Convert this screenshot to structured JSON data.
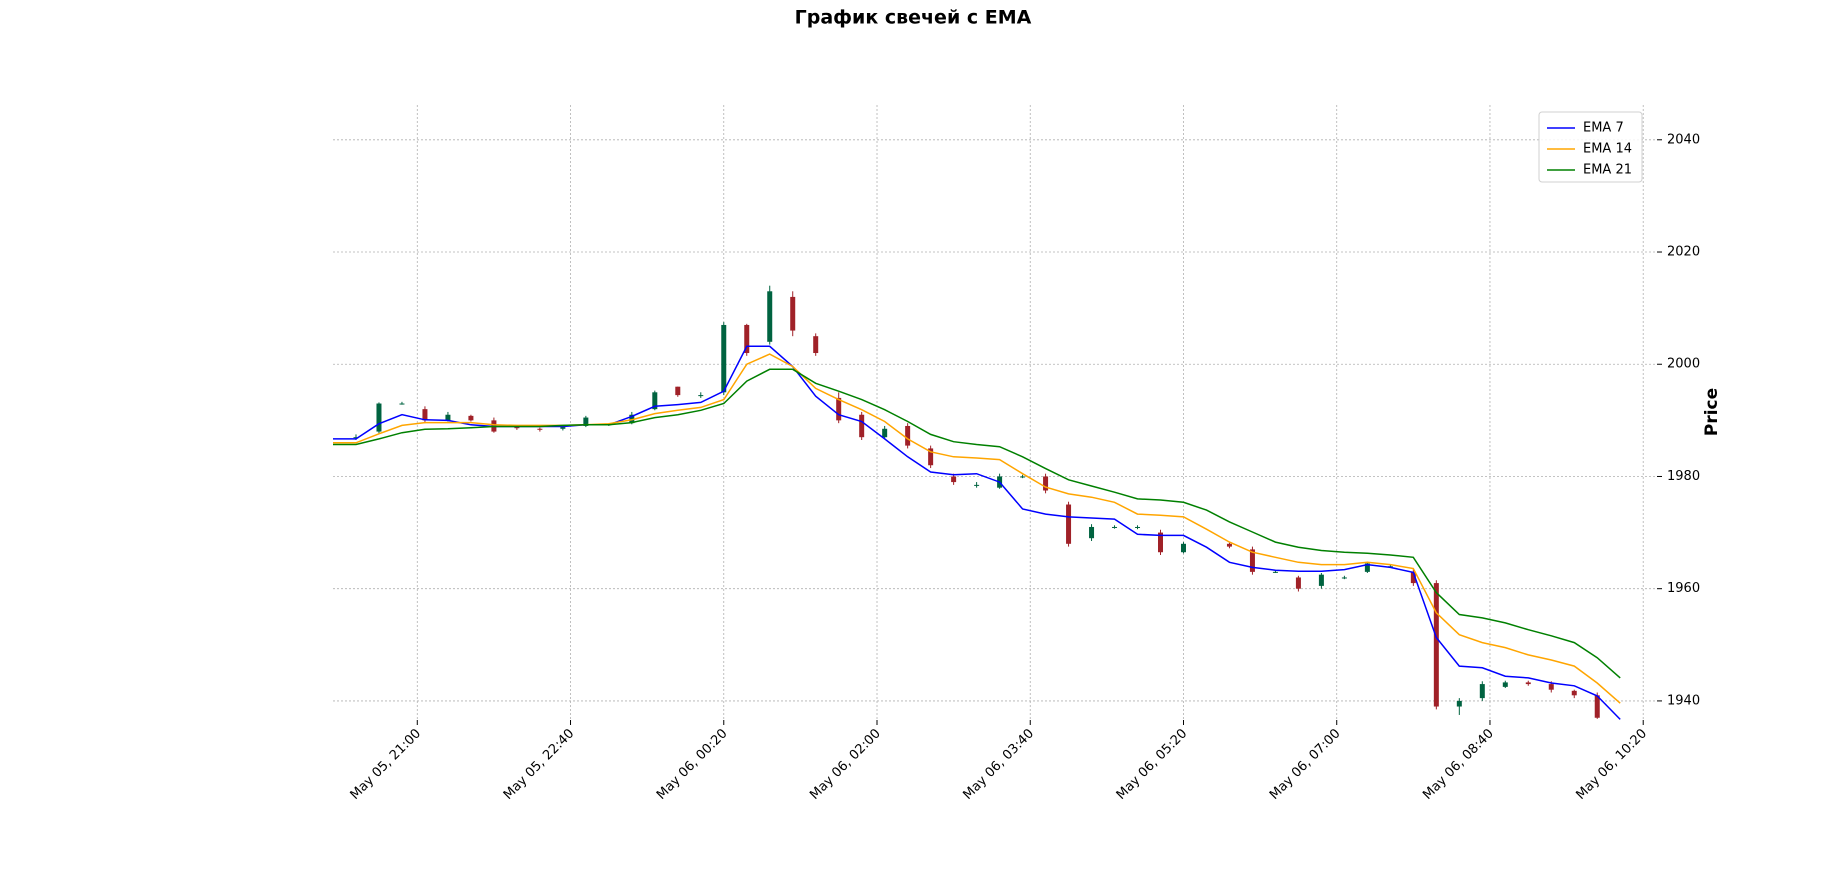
{
  "chart_data": {
    "type": "candlestick",
    "title": "График свечей с EMA",
    "y_label": "Price",
    "x": [
      "May 05, 20:05",
      "May 05, 20:20",
      "May 05, 20:35",
      "May 05, 20:50",
      "May 05, 21:05",
      "May 05, 21:20",
      "May 05, 21:35",
      "May 05, 21:50",
      "May 05, 22:05",
      "May 05, 22:20",
      "May 05, 22:35",
      "May 05, 22:50",
      "May 05, 23:05",
      "May 05, 23:20",
      "May 05, 23:35",
      "May 05, 23:50",
      "May 06, 00:05",
      "May 06, 00:20",
      "May 06, 00:35",
      "May 06, 00:50",
      "May 06, 01:05",
      "May 06, 01:20",
      "May 06, 01:35",
      "May 06, 01:50",
      "May 06, 02:05",
      "May 06, 02:20",
      "May 06, 02:35",
      "May 06, 02:50",
      "May 06, 03:05",
      "May 06, 03:20",
      "May 06, 03:35",
      "May 06, 03:50",
      "May 06, 04:05",
      "May 06, 04:20",
      "May 06, 04:35",
      "May 06, 04:50",
      "May 06, 05:05",
      "May 06, 05:20",
      "May 06, 05:35",
      "May 06, 05:50",
      "May 06, 06:05",
      "May 06, 06:20",
      "May 06, 06:35",
      "May 06, 06:50",
      "May 06, 07:05",
      "May 06, 07:20",
      "May 06, 07:35",
      "May 06, 07:50",
      "May 06, 08:05",
      "May 06, 08:20",
      "May 06, 08:35",
      "May 06, 08:50",
      "May 06, 09:05",
      "May 06, 09:20",
      "May 06, 09:35",
      "May 06, 09:50",
      "May 06, 10:05"
    ],
    "open": [
      null,
      1987,
      1988,
      1993,
      1992,
      1990,
      1990.8,
      1990,
      1988.8,
      1988.5,
      1988.5,
      1989,
      1989.3,
      1989.5,
      1992,
      1996,
      1994.5,
      1995,
      2007,
      2004,
      2012,
      2005,
      1994,
      1991,
      1987,
      1989,
      1985,
      1980,
      1978.5,
      1978,
      1980,
      1980,
      1975,
      1969,
      1971,
      1971,
      1970,
      1966.5,
      null,
      1968,
      1967,
      1963,
      1962,
      1960.5,
      1962,
      1963,
      1964,
      1963,
      1961,
      1939,
      1940.5,
      1942.5,
      1943.3,
      1943,
      1941.8,
      1941,
      null
    ],
    "high": [
      null,
      1987.5,
      1993.2,
      1993.3,
      1992.5,
      1991.5,
      1991,
      1990.5,
      1989,
      1988.7,
      1989,
      1990.8,
      1989.5,
      1991.5,
      1995.3,
      1996,
      1995,
      2007.5,
      2007.2,
      2014,
      2013,
      2005.5,
      1995,
      1991.5,
      1989,
      1989.5,
      1985.5,
      1980.5,
      1979,
      1980.5,
      1980.3,
      1980.5,
      1975.5,
      1971.5,
      1971.3,
      1971.3,
      1970.5,
      1968.3,
      null,
      1968.2,
      1967.5,
      1963.3,
      1962.3,
      1962.8,
      1962.3,
      1964.8,
      1964.3,
      1963.5,
      1961.5,
      1940.5,
      1943.5,
      1943.6,
      1943.6,
      1943.5,
      1942,
      1941.5,
      null
    ],
    "low": [
      null,
      1986.5,
      1987.5,
      1992.8,
      1989.5,
      1989.8,
      1989.8,
      1987.8,
      1988.3,
      1988,
      1988.2,
      1988.8,
      1989,
      1989.3,
      1991.8,
      1994.2,
      1994,
      1994.5,
      2001.5,
      2003.5,
      2005,
      2001.5,
      1989.5,
      1986.5,
      1986.8,
      1985,
      1981.5,
      1978.5,
      1978,
      1977.8,
      1979.7,
      1977,
      1967.5,
      1968.5,
      1970.7,
      1970.6,
      1966,
      1966.3,
      null,
      1967.2,
      1962.5,
      1962.8,
      1959.5,
      1960,
      1961.7,
      1962.8,
      1963.8,
      1960.5,
      1938.5,
      1937.5,
      1940,
      1942.3,
      1942.7,
      1941.5,
      1940.5,
      1936.8,
      null
    ],
    "close": [
      null,
      1987,
      1993,
      1993,
      1990,
      1991,
      1990,
      1988,
      1988.6,
      1988.4,
      1988.8,
      1990.5,
      1989.3,
      1991,
      1995,
      1994.5,
      1994.5,
      2007,
      2002,
      2013,
      2006,
      2002,
      1990,
      1987,
      1988.5,
      1985.5,
      1982,
      1979,
      1978.5,
      1980,
      1980,
      1977.5,
      1968,
      1971,
      1971,
      1971,
      1966.5,
      1968,
      null,
      1967.5,
      1963,
      1963,
      1960,
      1962.5,
      1962,
      1964.5,
      1964,
      1961,
      1939,
      1940,
      1943,
      1943.3,
      1943,
      1942,
      1941,
      1937,
      null
    ],
    "up_color": "#006340",
    "down_color": "#a02128",
    "series": [
      {
        "name": "EMA 7",
        "color": "#0000ff",
        "values": [
          1986.7,
          1986.7,
          1989.4,
          1991.0,
          1990.1,
          1990.0,
          1989.2,
          1988.9,
          1988.9,
          1988.9,
          1988.9,
          1989.2,
          1989.2,
          1990.7,
          1992.5,
          1992.8,
          1993.2,
          1995.2,
          2003.2,
          2003.2,
          1999.6,
          1994.3,
          1991.0,
          1989.8,
          1986.7,
          1983.5,
          1980.8,
          1980.3,
          1980.5,
          1979.0,
          1974.2,
          1973.3,
          1972.8,
          1972.6,
          1972.4,
          1969.7,
          1969.5,
          1969.5,
          1967.4,
          1964.7,
          1963.8,
          1963.3,
          1963.1,
          1963.1,
          1963.4,
          1964.3,
          1963.8,
          1962.9,
          1951.3,
          1946.2,
          1945.9,
          1944.4,
          1944.1,
          1943.2,
          1942.7,
          1940.9,
          1936.7
        ]
      },
      {
        "name": "EMA 14",
        "color": "#ffa500",
        "values": [
          1986.0,
          1986.0,
          1987.6,
          1989.1,
          1989.6,
          1989.6,
          1989.6,
          1989.2,
          1989.1,
          1989.1,
          1989.1,
          1989.2,
          1989.4,
          1990.1,
          1991.2,
          1991.8,
          1992.3,
          1993.7,
          2000.0,
          2001.8,
          1999.6,
          1995.7,
          1993.7,
          1991.9,
          1989.8,
          1986.7,
          1984.4,
          1983.5,
          1983.3,
          1983.0,
          1980.5,
          1978.1,
          1976.9,
          1976.3,
          1975.4,
          1973.3,
          1973.1,
          1972.8,
          1970.6,
          1968.3,
          1966.5,
          1965.6,
          1964.7,
          1964.3,
          1964.3,
          1964.7,
          1964.3,
          1963.6,
          1955.7,
          1951.8,
          1950.4,
          1949.5,
          1948.2,
          1947.3,
          1946.2,
          1943.2,
          1939.6
        ]
      },
      {
        "name": "EMA 21",
        "color": "#008000",
        "values": [
          1985.7,
          1985.7,
          1986.7,
          1987.8,
          1988.4,
          1988.5,
          1988.7,
          1988.9,
          1988.9,
          1988.9,
          1989.1,
          1989.2,
          1989.2,
          1989.6,
          1990.5,
          1991.0,
          1991.8,
          1993.0,
          1997.0,
          1999.1,
          1999.1,
          1996.6,
          1995.2,
          1993.7,
          1991.9,
          1989.8,
          1987.5,
          1986.2,
          1985.7,
          1985.3,
          1983.5,
          1981.4,
          1979.4,
          1978.3,
          1977.2,
          1976.0,
          1975.8,
          1975.4,
          1974.0,
          1971.9,
          1970.1,
          1968.3,
          1967.4,
          1966.8,
          1966.5,
          1966.3,
          1966.0,
          1965.6,
          1959.3,
          1955.4,
          1954.8,
          1953.9,
          1952.7,
          1951.6,
          1950.4,
          1947.7,
          1944.1
        ]
      }
    ],
    "xlim": [
      "May 05, 20:05",
      "May 06, 10:29"
    ],
    "xticks": [
      "May 05, 21:00",
      "May 05, 22:40",
      "May 06, 00:20",
      "May 06, 02:00",
      "May 06, 03:40",
      "May 06, 05:20",
      "May 06, 07:00",
      "May 06, 08:40",
      "May 06, 10:20"
    ],
    "ylim": [
      1936.6,
      2046.2
    ],
    "yticks": [
      1940,
      1960,
      1980,
      2000,
      2020,
      2040
    ],
    "grid": true,
    "legend": "upper right"
  }
}
